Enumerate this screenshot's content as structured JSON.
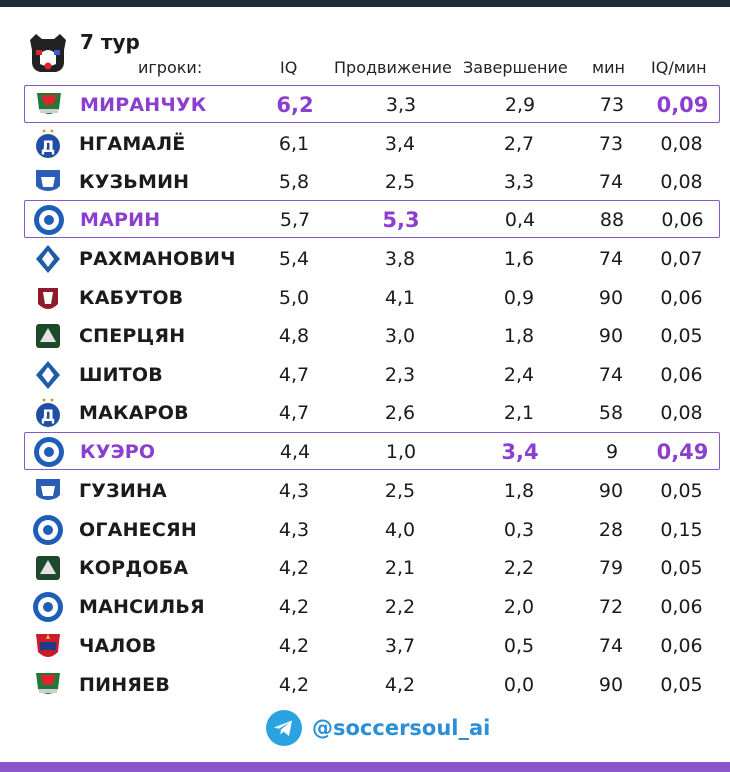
{
  "colors": {
    "accent": "#8b3fd0",
    "frame": "#8b56c7",
    "top_bar": "#1f2a3a",
    "handle": "#2a8fd6"
  },
  "header": {
    "round": "7 тур",
    "columns": {
      "players": "игроки:",
      "iq": "IQ",
      "progress": "Продвижение",
      "finishing": "Завершение",
      "minutes": "мин",
      "iq_per_min": "IQ/мин"
    }
  },
  "rows": [
    {
      "club_icon": "lokomotiv-badge",
      "name": "МИРАНЧУК",
      "iq": "6,2",
      "progress": "3,3",
      "finishing": "2,9",
      "min": "73",
      "iq_per_min": "0,09",
      "highlighted": true
    },
    {
      "club_icon": "dynamo-badge",
      "name": "НГАМАЛЁ",
      "iq": "6,1",
      "progress": "3,4",
      "finishing": "2,7",
      "min": "73",
      "iq_per_min": "0,08",
      "highlighted": false
    },
    {
      "club_icon": "baltika-badge",
      "name": "КУЗЬМИН",
      "iq": "5,8",
      "progress": "2,5",
      "finishing": "3,3",
      "min": "74",
      "iq_per_min": "0,08",
      "highlighted": false
    },
    {
      "club_icon": "orenburg-badge",
      "name": "МАРИН",
      "iq": "5,7",
      "progress": "5,3",
      "finishing": "0,4",
      "min": "88",
      "iq_per_min": "0,06",
      "highlighted": true
    },
    {
      "club_icon": "krylia-badge",
      "name": "РАХМАНОВИЧ",
      "iq": "5,4",
      "progress": "3,8",
      "finishing": "1,6",
      "min": "74",
      "iq_per_min": "0,07",
      "highlighted": false
    },
    {
      "club_icon": "rubin-badge",
      "name": "КАБУТОВ",
      "iq": "5,0",
      "progress": "4,1",
      "finishing": "0,9",
      "min": "90",
      "iq_per_min": "0,06",
      "highlighted": false
    },
    {
      "club_icon": "krasnodar-badge",
      "name": "СПЕРЦЯН",
      "iq": "4,8",
      "progress": "3,0",
      "finishing": "1,8",
      "min": "90",
      "iq_per_min": "0,05",
      "highlighted": false
    },
    {
      "club_icon": "krylia-badge",
      "name": "ШИТОВ",
      "iq": "4,7",
      "progress": "2,3",
      "finishing": "2,4",
      "min": "74",
      "iq_per_min": "0,06",
      "highlighted": false
    },
    {
      "club_icon": "dynamo-badge",
      "name": "МАКАРОВ",
      "iq": "4,7",
      "progress": "2,6",
      "finishing": "2,1",
      "min": "58",
      "iq_per_min": "0,08",
      "highlighted": false
    },
    {
      "club_icon": "orenburg-badge",
      "name": "КУЭРО",
      "iq": "4,4",
      "progress": "1,0",
      "finishing": "3,4",
      "min": "9",
      "iq_per_min": "0,49",
      "highlighted": true
    },
    {
      "club_icon": "baltika-badge",
      "name": "ГУЗИНА",
      "iq": "4,3",
      "progress": "2,5",
      "finishing": "1,8",
      "min": "90",
      "iq_per_min": "0,05",
      "highlighted": false
    },
    {
      "club_icon": "orenburg-badge",
      "name": "ОГАНЕСЯН",
      "iq": "4,3",
      "progress": "4,0",
      "finishing": "0,3",
      "min": "28",
      "iq_per_min": "0,15",
      "highlighted": false
    },
    {
      "club_icon": "krasnodar-badge",
      "name": "КОРДОБА",
      "iq": "4,2",
      "progress": "2,1",
      "finishing": "2,2",
      "min": "79",
      "iq_per_min": "0,05",
      "highlighted": false
    },
    {
      "club_icon": "orenburg-badge",
      "name": "МАНСИЛЬЯ",
      "iq": "4,2",
      "progress": "2,2",
      "finishing": "2,0",
      "min": "72",
      "iq_per_min": "0,06",
      "highlighted": false
    },
    {
      "club_icon": "cska-badge",
      "name": "ЧАЛОВ",
      "iq": "4,2",
      "progress": "3,7",
      "finishing": "0,5",
      "min": "74",
      "iq_per_min": "0,06",
      "highlighted": false
    },
    {
      "club_icon": "lokomotiv-badge",
      "name": "ПИНЯЕВ",
      "iq": "4,2",
      "progress": "4,2",
      "finishing": "0,0",
      "min": "90",
      "iq_per_min": "0,05",
      "highlighted": false
    }
  ],
  "footer": {
    "handle": "@soccersoul_ai",
    "icon": "telegram-icon"
  }
}
